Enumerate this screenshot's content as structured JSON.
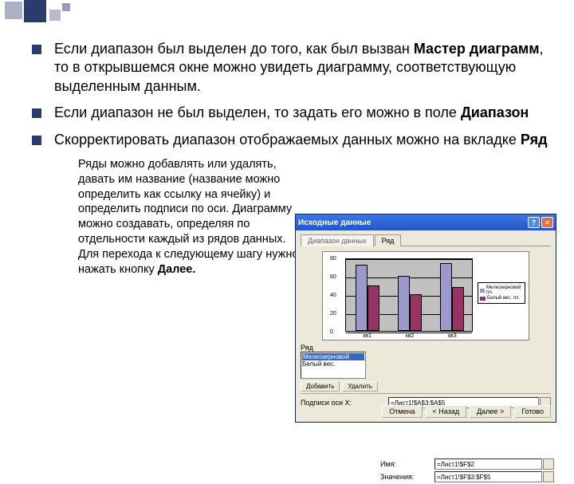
{
  "bullets": [
    {
      "pre": "Если диапазон был выделен до того, как был вызван ",
      "bold": "Мастер диаграмм",
      "post": ", то в открывшемся окне можно увидеть диаграмму, соответствующую выделенным данным."
    },
    {
      "pre": "Если диапазон не был выделен, то задать его можно в поле ",
      "bold": "Диапазон",
      "post": ""
    },
    {
      "pre": "Скорректировать диапазон отображаемых данных можно на вкладке ",
      "bold": "Ряд",
      "post": ""
    }
  ],
  "subtext": {
    "pre": "Ряды можно добавлять или удалять, давать им название (название можно определить как ссылку на ячейку) и определить подписи по оси. Диаграмму можно создавать, определяя по отдельности каждый из рядов данных. Для перехода к следующему шагу нужно нажать кнопку ",
    "bold": "Далее.",
    "post": ""
  },
  "dialog": {
    "title": "Исходные данные",
    "help": "?",
    "close": "×",
    "tabs": [
      "Диапазон данных",
      "Ряд"
    ],
    "chart": {
      "type": "bar",
      "background_color": "#c0c0c0",
      "plot_border": "#000000",
      "categories": [
        "кв1",
        "кв2",
        "кв3"
      ],
      "series": [
        {
          "name": "Мелкозерновой пл.",
          "color": "#9999cc"
        },
        {
          "name": "Белый вес. пл.",
          "color": "#993366"
        }
      ],
      "values": [
        [
          72,
          60,
          74
        ],
        [
          50,
          40,
          48
        ]
      ],
      "ylim": [
        0,
        80
      ],
      "yticks": [
        0,
        20,
        40,
        60,
        80
      ]
    },
    "form": {
      "ryad_label": "Ряд",
      "list_items": [
        "Мелкозерновой",
        "Белый вес."
      ],
      "name_label": "Имя:",
      "name_value": "=Лист1!$F$2",
      "values_label": "Значения:",
      "values_value": "=Лист1!$F$3:$F$5",
      "add_btn": "Добавить",
      "del_btn": "Удалить",
      "xlabels_label": "Подписи оси X:",
      "xlabels_value": "=Лист1!$A$3:$A$5"
    },
    "buttons": {
      "cancel": "Отмена",
      "back": "< Назад",
      "next": "Далее >",
      "finish": "Готово"
    }
  },
  "deco_color": "#2a3b6e"
}
